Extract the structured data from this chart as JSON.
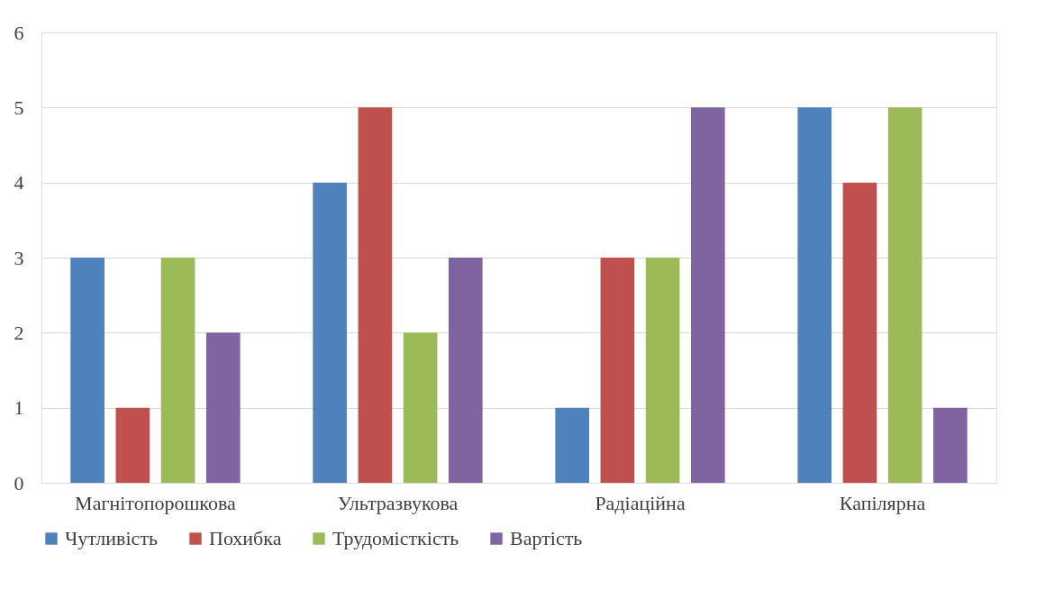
{
  "chart_data": {
    "type": "bar",
    "categories": [
      "Магнітопорошкова",
      "Ультразвукова",
      "Радіаційна",
      "Капілярна"
    ],
    "series": [
      {
        "name": "Чутливість",
        "color": "#4f81bd",
        "values": [
          3,
          4,
          1,
          5
        ]
      },
      {
        "name": "Похибка",
        "color": "#c0504d",
        "values": [
          1,
          5,
          3,
          4
        ]
      },
      {
        "name": "Трудомісткість",
        "color": "#9bbb59",
        "values": [
          3,
          2,
          3,
          5
        ]
      },
      {
        "name": "Вартість",
        "color": "#8064a2",
        "values": [
          2,
          3,
          5,
          1
        ]
      }
    ],
    "ylim": [
      0,
      6
    ],
    "yticks": [
      0,
      1,
      2,
      3,
      4,
      5,
      6
    ],
    "grid": "y",
    "legend": "bottom"
  }
}
